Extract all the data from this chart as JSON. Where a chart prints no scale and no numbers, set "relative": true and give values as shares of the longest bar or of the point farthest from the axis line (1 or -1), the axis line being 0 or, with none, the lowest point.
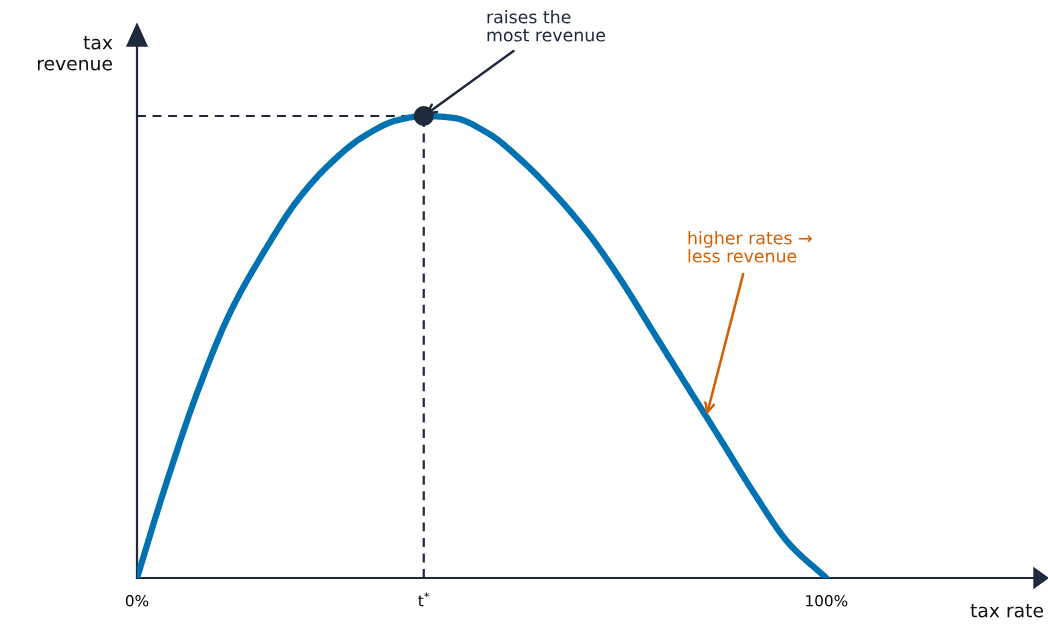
{
  "chart_data": {
    "type": "line",
    "relative": true,
    "xlabel": "tax rate",
    "ylabel": "tax\nrevenue",
    "x": [
      0,
      3.8,
      8.7,
      13.5,
      18.3,
      23.3,
      28.1,
      32.8,
      37.8,
      41.6,
      45.9,
      50.9,
      55.7,
      60.5,
      65.4,
      70.2,
      75.0,
      79.9,
      84.7,
      89.5,
      94.5,
      100
    ],
    "series": [
      {
        "color": "#0072b2",
        "values": [
          0,
          0.184,
          0.4,
          0.574,
          0.703,
          0.818,
          0.898,
          0.955,
          0.991,
          1,
          0.996,
          0.963,
          0.905,
          0.833,
          0.747,
          0.645,
          0.53,
          0.413,
          0.299,
          0.184,
          0.076,
          0
        ]
      },
      {
        "type": "scatter",
        "color": "#1e293b",
        "x": [
          41.6
        ],
        "values": [
          1
        ],
        "marker": "circle"
      }
    ],
    "xlim": [
      0,
      131
    ],
    "xticks": [
      {
        "value": 0,
        "label": "0%"
      },
      {
        "value": 41.6,
        "label": "t$^{*}$"
      },
      {
        "value": 100,
        "label": "100%"
      }
    ],
    "ref_lines": [
      {
        "axis": "x",
        "value": 41.6,
        "color": "#1e293b",
        "line_style": "dashed"
      },
      {
        "axis": "y",
        "value": 1,
        "color": "#1e293b",
        "line_style": "dashed"
      }
    ],
    "annotations": [
      {
        "text": "raises the\nmost revenue",
        "x": 41.6,
        "y": 1
      },
      {
        "text": "higher rates →\nless revenue",
        "x": 82.6,
        "y": 0.35
      }
    ],
    "grid": false
  }
}
